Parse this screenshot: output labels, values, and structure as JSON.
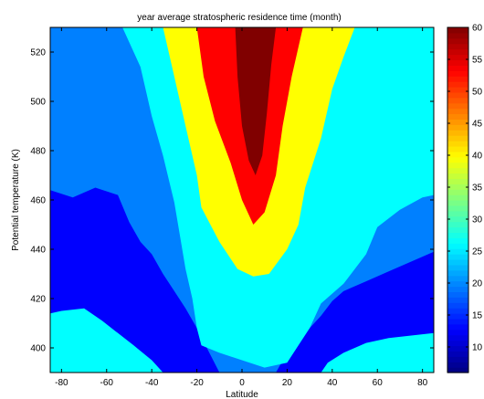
{
  "chart_data": {
    "type": "contourf",
    "title": "year average stratospheric residence time (month)",
    "xlabel": "Latitude",
    "ylabel": "Potential temperature (K)",
    "xlim": [
      -85,
      85
    ],
    "ylim": [
      390,
      530
    ],
    "xticks": [
      -80,
      -60,
      -40,
      -20,
      0,
      20,
      40,
      60,
      80
    ],
    "yticks": [
      400,
      420,
      440,
      460,
      480,
      500,
      520
    ],
    "colorbar": {
      "range": [
        6,
        60
      ],
      "ticks": [
        10,
        15,
        20,
        25,
        30,
        35,
        40,
        45,
        50,
        55,
        60
      ]
    },
    "levels": [
      {
        "min": 6,
        "max": 15,
        "color": "#00008f"
      },
      {
        "min": 15,
        "max": 23,
        "color": "#0000ff"
      },
      {
        "min": 23,
        "max": 32,
        "color": "#0080ff"
      },
      {
        "min": 32,
        "max": 41,
        "color": "#00ffff"
      },
      {
        "min": 41,
        "max": 51,
        "color": "#ffff00"
      },
      {
        "min": 51,
        "max": 55,
        "color": "#ff0000"
      },
      {
        "min": 55,
        "max": 60,
        "color": "#800000"
      }
    ],
    "regions": [
      {
        "level": 1,
        "points": [
          [
            -85,
            414
          ],
          [
            -80,
            415
          ],
          [
            -70,
            416
          ],
          [
            -62,
            411
          ],
          [
            -55,
            406
          ],
          [
            -48,
            401
          ],
          [
            -40,
            395
          ],
          [
            -35,
            390
          ],
          [
            35,
            390
          ],
          [
            38,
            394
          ],
          [
            45,
            398
          ],
          [
            55,
            402
          ],
          [
            65,
            404
          ],
          [
            75,
            405
          ],
          [
            85,
            406
          ],
          [
            85,
            530
          ],
          [
            -85,
            530
          ]
        ]
      },
      {
        "level": 2,
        "points": [
          [
            -85,
            464
          ],
          [
            -75,
            461
          ],
          [
            -65,
            465
          ],
          [
            -55,
            462
          ],
          [
            -50,
            451
          ],
          [
            -45,
            443
          ],
          [
            -40,
            438
          ],
          [
            -35,
            430
          ],
          [
            -30,
            423
          ],
          [
            -25,
            416
          ],
          [
            -20,
            408
          ],
          [
            -15,
            399
          ],
          [
            -10,
            390
          ],
          [
            10,
            390
          ],
          [
            15,
            390
          ],
          [
            20,
            398
          ],
          [
            25,
            403
          ],
          [
            30,
            408
          ],
          [
            35,
            413
          ],
          [
            40,
            419
          ],
          [
            45,
            423
          ],
          [
            55,
            427
          ],
          [
            65,
            431
          ],
          [
            75,
            435
          ],
          [
            85,
            439
          ],
          [
            85,
            530
          ],
          [
            -85,
            530
          ]
        ]
      },
      {
        "level": 3,
        "points": [
          [
            -53,
            530
          ],
          [
            -45,
            514
          ],
          [
            -40,
            494
          ],
          [
            -35,
            478
          ],
          [
            -30,
            459
          ],
          [
            -25,
            432
          ],
          [
            -22,
            420
          ],
          [
            -20,
            408
          ],
          [
            -18,
            401
          ],
          [
            -10,
            398
          ],
          [
            0,
            395
          ],
          [
            10,
            392
          ],
          [
            20,
            394
          ],
          [
            30,
            408
          ],
          [
            35,
            418
          ],
          [
            45,
            426
          ],
          [
            55,
            438
          ],
          [
            60,
            449
          ],
          [
            70,
            456
          ],
          [
            80,
            461
          ],
          [
            85,
            462
          ],
          [
            85,
            530
          ]
        ]
      },
      {
        "level": 4,
        "points": [
          [
            -35,
            530
          ],
          [
            -30,
            510
          ],
          [
            -25,
            490
          ],
          [
            -20,
            470
          ],
          [
            -18,
            457
          ],
          [
            -10,
            443
          ],
          [
            -2,
            432
          ],
          [
            5,
            429
          ],
          [
            12,
            430
          ],
          [
            20,
            440
          ],
          [
            25,
            450
          ],
          [
            28,
            465
          ],
          [
            35,
            485
          ],
          [
            40,
            505
          ],
          [
            45,
            518
          ],
          [
            50,
            530
          ]
        ]
      },
      {
        "level": 5,
        "points": [
          [
            -20,
            530
          ],
          [
            -17,
            510
          ],
          [
            -12,
            492
          ],
          [
            -5,
            475
          ],
          [
            0,
            460
          ],
          [
            5,
            450
          ],
          [
            10,
            455
          ],
          [
            15,
            470
          ],
          [
            18,
            490
          ],
          [
            22,
            510
          ],
          [
            27,
            530
          ]
        ]
      },
      {
        "level": 6,
        "points": [
          [
            -3,
            530
          ],
          [
            -2,
            510
          ],
          [
            0,
            490
          ],
          [
            3,
            476
          ],
          [
            6,
            470
          ],
          [
            9,
            478
          ],
          [
            11,
            495
          ],
          [
            13,
            515
          ],
          [
            15,
            530
          ]
        ]
      }
    ]
  }
}
